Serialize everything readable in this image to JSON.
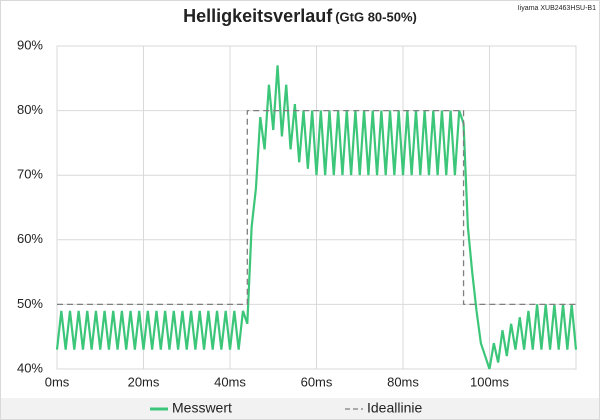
{
  "chart_data": {
    "type": "line",
    "title": "Helligkeitsverlauf",
    "subtitle": "(GtG 80-50%)",
    "annotation": "Iiyama XUB2463HSU-B1",
    "xlim": [
      0,
      120
    ],
    "xticks": [
      {
        "value": 0,
        "label": "0ms"
      },
      {
        "value": 20,
        "label": "20ms"
      },
      {
        "value": 40,
        "label": "40ms"
      },
      {
        "value": 60,
        "label": "60ms"
      },
      {
        "value": 80,
        "label": "80ms"
      },
      {
        "value": 100,
        "label": "100ms"
      }
    ],
    "ylim": [
      40,
      90
    ],
    "yticks": [
      {
        "value": 40,
        "label": "40%"
      },
      {
        "value": 50,
        "label": "50%"
      },
      {
        "value": 60,
        "label": "60%"
      },
      {
        "value": 70,
        "label": "70%"
      },
      {
        "value": 80,
        "label": "80%"
      },
      {
        "value": 90,
        "label": "90%"
      }
    ],
    "grid": true,
    "legend": "bottom",
    "series": [
      {
        "name": "Messwert",
        "color": "#3cc679",
        "style": "solid",
        "x": [
          0,
          1,
          2,
          3,
          4,
          5,
          6,
          7,
          8,
          9,
          10,
          11,
          12,
          13,
          14,
          15,
          16,
          17,
          18,
          19,
          20,
          21,
          22,
          23,
          24,
          25,
          26,
          27,
          28,
          29,
          30,
          31,
          32,
          33,
          34,
          35,
          36,
          37,
          38,
          39,
          40,
          41,
          42,
          43,
          44,
          45,
          46,
          47,
          48,
          49,
          50,
          51,
          52,
          53,
          54,
          55,
          56,
          57,
          58,
          59,
          60,
          61,
          62,
          63,
          64,
          65,
          66,
          67,
          68,
          69,
          70,
          71,
          72,
          73,
          74,
          75,
          76,
          77,
          78,
          79,
          80,
          81,
          82,
          83,
          84,
          85,
          86,
          87,
          88,
          89,
          90,
          91,
          92,
          93,
          94,
          95,
          96,
          97,
          98,
          99,
          100,
          101,
          102,
          103,
          104,
          105,
          106,
          107,
          108,
          109,
          110,
          111,
          112,
          113,
          114,
          115,
          116,
          117,
          118,
          119,
          120
        ],
        "values": [
          43,
          49,
          43,
          49,
          43,
          49,
          43,
          49,
          43,
          49,
          43,
          49,
          43,
          49,
          43,
          49,
          43,
          49,
          43,
          49,
          43,
          49,
          43,
          49,
          43,
          49,
          43,
          49,
          43,
          49,
          43,
          49,
          43,
          49,
          43,
          49,
          43,
          49,
          43,
          49,
          43,
          49,
          43,
          49,
          47,
          62,
          68,
          79,
          74,
          84,
          77,
          87,
          76,
          84,
          74,
          81,
          72,
          80,
          71,
          80,
          70,
          80,
          70,
          80,
          70,
          80,
          70,
          80,
          70,
          80,
          70,
          80,
          70,
          80,
          70,
          80,
          70,
          80,
          70,
          80,
          70,
          80,
          70,
          80,
          70,
          80,
          70,
          80,
          70,
          80,
          70,
          80,
          70,
          80,
          78,
          62,
          55,
          49,
          44,
          42,
          40,
          44,
          41,
          46,
          42,
          47,
          43,
          48,
          43,
          49,
          43,
          50,
          43,
          50,
          43,
          50,
          43,
          50,
          43,
          50,
          43
        ]
      },
      {
        "name": "Ideallinie",
        "color": "#7f7f7f",
        "style": "dashed",
        "x": [
          0,
          44,
          44,
          94,
          94,
          120
        ],
        "values": [
          50,
          50,
          80,
          80,
          50,
          50
        ]
      }
    ]
  }
}
